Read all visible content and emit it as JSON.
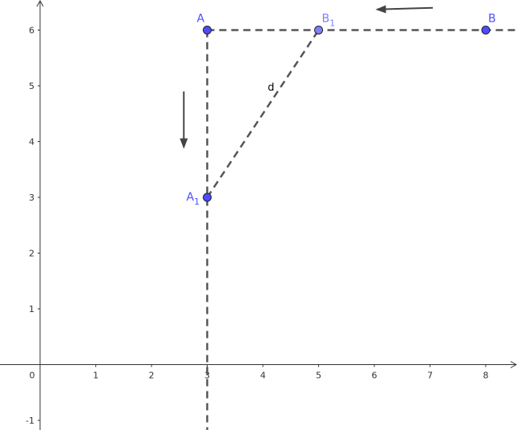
{
  "axes": {
    "x_ticks": [
      "0",
      "1",
      "2",
      "3",
      "4",
      "5",
      "6",
      "7",
      "8"
    ],
    "y_ticks": [
      "-1",
      "1",
      "2",
      "3",
      "4",
      "5",
      "6"
    ],
    "xlim": [
      -0.7,
      8.55
    ],
    "ylim": [
      -1.17,
      6.55
    ],
    "color": "#333333"
  },
  "points": [
    {
      "id": "A",
      "label": "A",
      "sub": "",
      "x": 3,
      "y": 6,
      "color": "#4d4dff"
    },
    {
      "id": "B",
      "label": "B",
      "sub": "",
      "x": 8,
      "y": 6,
      "color": "#4d4dff"
    },
    {
      "id": "A1",
      "label": "A",
      "sub": "1",
      "x": 3,
      "y": 3,
      "color": "#4d4dff"
    },
    {
      "id": "B1",
      "label": "B",
      "sub": "1",
      "x": 5,
      "y": 6,
      "color": "#7f7fff"
    }
  ],
  "lines": [
    {
      "id": "horizontal-line-y6",
      "from": [
        3,
        6
      ],
      "to": [
        8.55,
        6
      ]
    },
    {
      "id": "vertical-line-x3",
      "from": [
        3,
        6
      ],
      "to": [
        3,
        -1.17
      ]
    },
    {
      "id": "segment-d",
      "from": [
        3,
        3
      ],
      "to": [
        5,
        6
      ],
      "label": "d"
    }
  ],
  "motion_arrows": [
    {
      "id": "arrow-down",
      "from": [
        2.58,
        4.9
      ],
      "to": [
        2.58,
        3.9
      ]
    },
    {
      "id": "arrow-left",
      "from": [
        7.05,
        6.4
      ],
      "to": [
        6.05,
        6.37
      ]
    }
  ],
  "line_color": "#555555"
}
